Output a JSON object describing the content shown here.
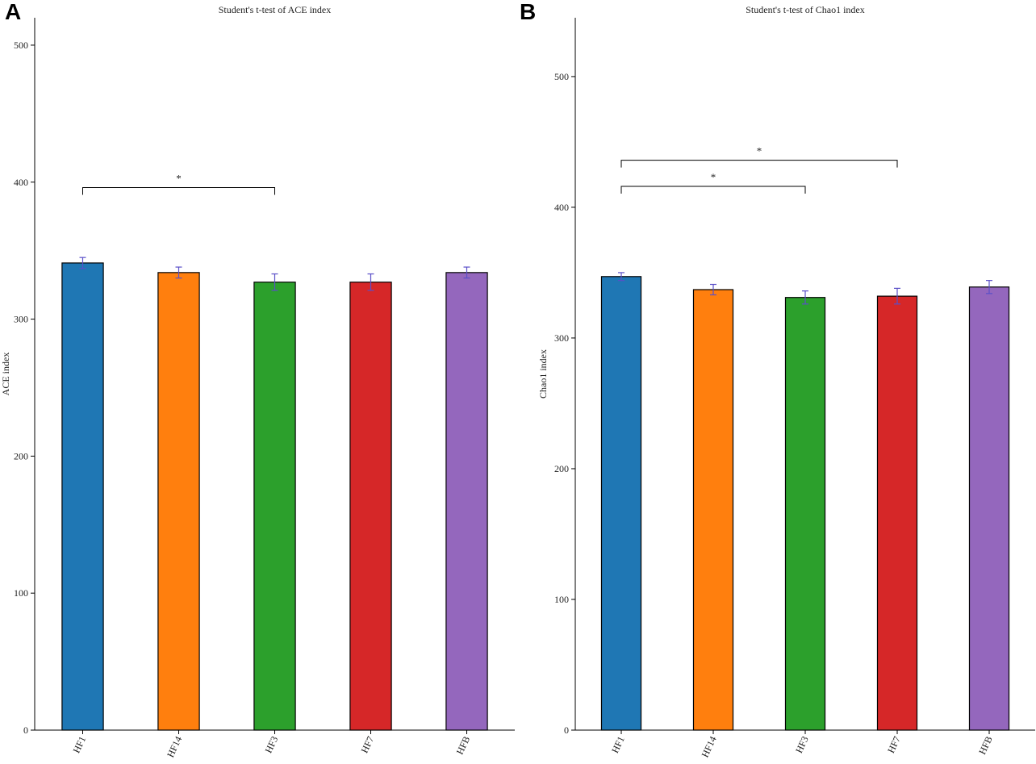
{
  "figure": {
    "panels": [
      {
        "letter": "A"
      },
      {
        "letter": "B"
      }
    ]
  },
  "chart_data": [
    {
      "type": "bar",
      "title": "Student's t-test of ACE index",
      "xlabel": "",
      "ylabel": "ACE index",
      "ylim": [
        0,
        520
      ],
      "yticks": [
        0,
        100,
        200,
        300,
        400,
        500
      ],
      "categories": [
        "HF1",
        "HF14",
        "HF3",
        "HF7",
        "HFB"
      ],
      "values": [
        341,
        334,
        327,
        327,
        334
      ],
      "errors": [
        4,
        4,
        6,
        6,
        4
      ],
      "colors": [
        "#1f77b4",
        "#ff7f0e",
        "#2ca02c",
        "#d62728",
        "#9467bd"
      ],
      "error_color": "#5a4fc8",
      "significance": [
        {
          "from": "HF1",
          "to": "HF3",
          "y": 396,
          "label": "*"
        }
      ]
    },
    {
      "type": "bar",
      "title": "Student's t-test of Chao1 index",
      "xlabel": "",
      "ylabel": "Chao1 index",
      "ylim": [
        0,
        545
      ],
      "yticks": [
        0,
        100,
        200,
        300,
        400,
        500
      ],
      "categories": [
        "HF1",
        "HF14",
        "HF3",
        "HF7",
        "HFB"
      ],
      "values": [
        347,
        337,
        331,
        332,
        339
      ],
      "errors": [
        3,
        4,
        5,
        6,
        5
      ],
      "colors": [
        "#1f77b4",
        "#ff7f0e",
        "#2ca02c",
        "#d62728",
        "#9467bd"
      ],
      "error_color": "#5a4fc8",
      "significance": [
        {
          "from": "HF1",
          "to": "HF3",
          "y": 416,
          "label": "*"
        },
        {
          "from": "HF1",
          "to": "HF7",
          "y": 436,
          "label": "*"
        }
      ]
    }
  ]
}
